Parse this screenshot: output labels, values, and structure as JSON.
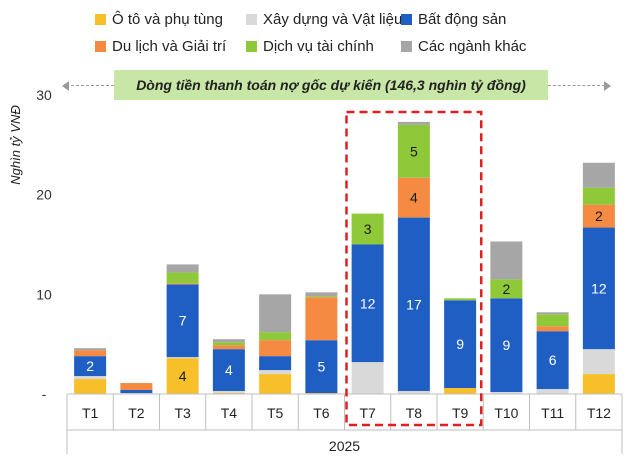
{
  "legend": [
    {
      "label": "Ô tô và phụ tùng",
      "color": "#f7c02b"
    },
    {
      "label": "Xây dựng và Vật liệu",
      "color": "#d9d9d9"
    },
    {
      "label": "Bất động sản",
      "color": "#1f5fc4"
    },
    {
      "label": "Du lịch và Giải trí",
      "color": "#f58a42"
    },
    {
      "label": "Dịch vụ tài chính",
      "color": "#8fc93a"
    },
    {
      "label": "Các ngành khác",
      "color": "#a6a6a6"
    }
  ],
  "banner": "Dòng tiền thanh toán nợ gốc dự kiến (146,3 nghìn tỷ đồng)",
  "chart_data": {
    "type": "bar",
    "stacked": true,
    "categories": [
      "T1",
      "T2",
      "T3",
      "T4",
      "T5",
      "T6",
      "T7",
      "T8",
      "T9",
      "T10",
      "T11",
      "T12"
    ],
    "xgroup_label": "2025",
    "ylabel": "Nghìn tỷ VNĐ",
    "ylim": [
      0,
      30
    ],
    "yticks": [
      "-",
      "10",
      "20",
      "30"
    ],
    "series": [
      {
        "name": "Ô tô và phụ tùng",
        "color": "#f7c02b",
        "values": [
          1.5,
          0.0,
          3.6,
          0.1,
          2.0,
          0.1,
          0.0,
          0.0,
          0.6,
          0.0,
          0.0,
          2.0
        ]
      },
      {
        "name": "Xây dựng và Vật liệu",
        "color": "#d9d9d9",
        "values": [
          0.3,
          0.1,
          0.1,
          0.2,
          0.4,
          0.0,
          3.2,
          0.3,
          0.0,
          0.2,
          0.5,
          2.5
        ]
      },
      {
        "name": "Bất động sản",
        "color": "#1f5fc4",
        "values": [
          2.0,
          0.3,
          7.3,
          4.2,
          1.4,
          5.3,
          11.8,
          17.4,
          8.8,
          9.4,
          5.8,
          12.2
        ]
      },
      {
        "name": "Du lịch và Giải trí",
        "color": "#f58a42",
        "values": [
          0.6,
          0.7,
          0.1,
          0.4,
          1.6,
          4.3,
          0.0,
          4.0,
          0.0,
          0.0,
          0.5,
          2.3
        ]
      },
      {
        "name": "Dịch vụ tài chính",
        "color": "#8fc93a",
        "values": [
          0.0,
          0.0,
          1.1,
          0.3,
          0.8,
          0.1,
          3.1,
          5.3,
          0.2,
          1.9,
          1.2,
          1.7
        ]
      },
      {
        "name": "Các ngành khác",
        "color": "#a6a6a6",
        "values": [
          0.2,
          0.0,
          0.8,
          0.3,
          3.8,
          0.4,
          0.0,
          0.3,
          0.0,
          3.8,
          0.2,
          2.5
        ]
      }
    ],
    "data_labels": [
      {
        "category": "T1",
        "series": "Bất động sản",
        "text": "2"
      },
      {
        "category": "T3",
        "series": "Ô tô và phụ tùng",
        "text": "4"
      },
      {
        "category": "T3",
        "series": "Bất động sản",
        "text": "7"
      },
      {
        "category": "T4",
        "series": "Bất động sản",
        "text": "4"
      },
      {
        "category": "T6",
        "series": "Bất động sản",
        "text": "5"
      },
      {
        "category": "T7",
        "series": "Bất động sản",
        "text": "12"
      },
      {
        "category": "T7",
        "series": "Dịch vụ tài chính",
        "text": "3"
      },
      {
        "category": "T8",
        "series": "Bất động sản",
        "text": "17"
      },
      {
        "category": "T8",
        "series": "Du lịch và Giải trí",
        "text": "4"
      },
      {
        "category": "T8",
        "series": "Dịch vụ tài chính",
        "text": "5"
      },
      {
        "category": "T9",
        "series": "Bất động sản",
        "text": "9"
      },
      {
        "category": "T10",
        "series": "Bất động sản",
        "text": "9"
      },
      {
        "category": "T10",
        "series": "Dịch vụ tài chính",
        "text": "2"
      },
      {
        "category": "T11",
        "series": "Bất động sản",
        "text": "6"
      },
      {
        "category": "T12",
        "series": "Bất động sản",
        "text": "12"
      },
      {
        "category": "T12",
        "series": "Du lịch và Giải trí",
        "text": "2"
      }
    ],
    "highlight": {
      "from": "T7",
      "to": "T9",
      "style": "red dashed box"
    }
  }
}
